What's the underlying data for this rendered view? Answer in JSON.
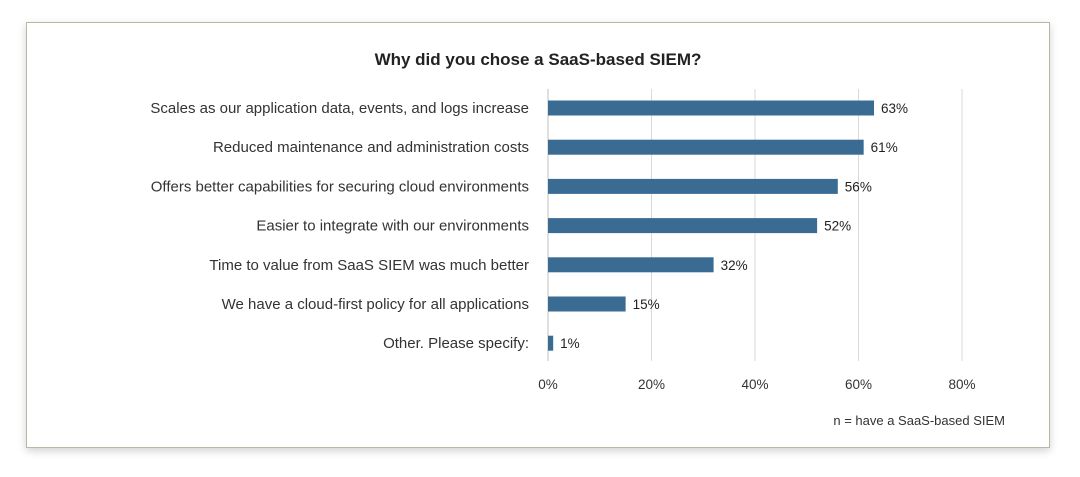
{
  "chart_data": {
    "type": "bar",
    "orientation": "horizontal",
    "title": "Why did you chose a SaaS-based SIEM?",
    "categories": [
      "Scales as our application data, events, and logs increase",
      "Reduced maintenance and administration costs",
      "Offers better capabilities for securing cloud environments",
      "Easier to integrate with our environments",
      "Time to value from SaaS SIEM was much better",
      "We have a cloud-first policy for all applications",
      "Other. Please specify:"
    ],
    "values": [
      63,
      61,
      56,
      52,
      32,
      15,
      1
    ],
    "value_labels": [
      "63%",
      "61%",
      "56%",
      "52%",
      "32%",
      "15%",
      "1%"
    ],
    "xlim": [
      0,
      80
    ],
    "xticks": [
      0,
      20,
      40,
      60,
      80
    ],
    "xtick_labels": [
      "0%",
      "20%",
      "40%",
      "60%",
      "80%"
    ],
    "grid": true,
    "bar_color": "#3a6c93",
    "note": "n = have a SaaS-based SIEM"
  }
}
